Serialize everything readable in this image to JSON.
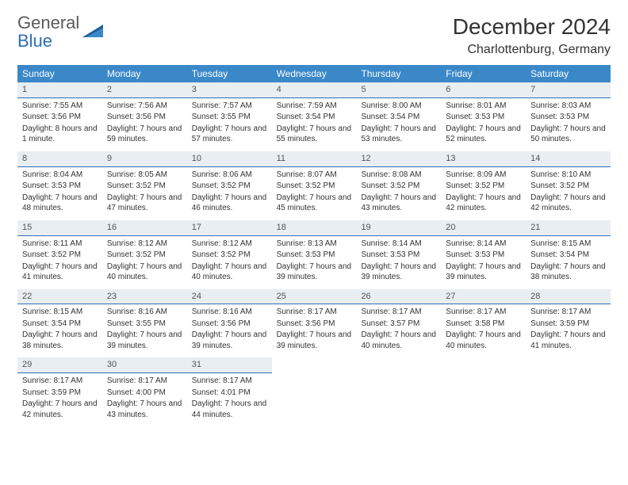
{
  "logo": {
    "part1": "General",
    "part2": "Blue"
  },
  "title": "December 2024",
  "location": "Charlottenburg, Germany",
  "colors": {
    "header_bg": "#3b88c9",
    "header_text": "#ffffff",
    "daynum_bg": "#e9eef2",
    "daynum_border": "#2c6fb5",
    "body_text": "#333333",
    "logo_gray": "#5a5a5a",
    "logo_blue": "#2c6fb5"
  },
  "dayHeaders": [
    "Sunday",
    "Monday",
    "Tuesday",
    "Wednesday",
    "Thursday",
    "Friday",
    "Saturday"
  ],
  "weeks": [
    [
      {
        "n": "1",
        "sunrise": "Sunrise: 7:55 AM",
        "sunset": "Sunset: 3:56 PM",
        "daylight": "Daylight: 8 hours and 1 minute."
      },
      {
        "n": "2",
        "sunrise": "Sunrise: 7:56 AM",
        "sunset": "Sunset: 3:56 PM",
        "daylight": "Daylight: 7 hours and 59 minutes."
      },
      {
        "n": "3",
        "sunrise": "Sunrise: 7:57 AM",
        "sunset": "Sunset: 3:55 PM",
        "daylight": "Daylight: 7 hours and 57 minutes."
      },
      {
        "n": "4",
        "sunrise": "Sunrise: 7:59 AM",
        "sunset": "Sunset: 3:54 PM",
        "daylight": "Daylight: 7 hours and 55 minutes."
      },
      {
        "n": "5",
        "sunrise": "Sunrise: 8:00 AM",
        "sunset": "Sunset: 3:54 PM",
        "daylight": "Daylight: 7 hours and 53 minutes."
      },
      {
        "n": "6",
        "sunrise": "Sunrise: 8:01 AM",
        "sunset": "Sunset: 3:53 PM",
        "daylight": "Daylight: 7 hours and 52 minutes."
      },
      {
        "n": "7",
        "sunrise": "Sunrise: 8:03 AM",
        "sunset": "Sunset: 3:53 PM",
        "daylight": "Daylight: 7 hours and 50 minutes."
      }
    ],
    [
      {
        "n": "8",
        "sunrise": "Sunrise: 8:04 AM",
        "sunset": "Sunset: 3:53 PM",
        "daylight": "Daylight: 7 hours and 48 minutes."
      },
      {
        "n": "9",
        "sunrise": "Sunrise: 8:05 AM",
        "sunset": "Sunset: 3:52 PM",
        "daylight": "Daylight: 7 hours and 47 minutes."
      },
      {
        "n": "10",
        "sunrise": "Sunrise: 8:06 AM",
        "sunset": "Sunset: 3:52 PM",
        "daylight": "Daylight: 7 hours and 46 minutes."
      },
      {
        "n": "11",
        "sunrise": "Sunrise: 8:07 AM",
        "sunset": "Sunset: 3:52 PM",
        "daylight": "Daylight: 7 hours and 45 minutes."
      },
      {
        "n": "12",
        "sunrise": "Sunrise: 8:08 AM",
        "sunset": "Sunset: 3:52 PM",
        "daylight": "Daylight: 7 hours and 43 minutes."
      },
      {
        "n": "13",
        "sunrise": "Sunrise: 8:09 AM",
        "sunset": "Sunset: 3:52 PM",
        "daylight": "Daylight: 7 hours and 42 minutes."
      },
      {
        "n": "14",
        "sunrise": "Sunrise: 8:10 AM",
        "sunset": "Sunset: 3:52 PM",
        "daylight": "Daylight: 7 hours and 42 minutes."
      }
    ],
    [
      {
        "n": "15",
        "sunrise": "Sunrise: 8:11 AM",
        "sunset": "Sunset: 3:52 PM",
        "daylight": "Daylight: 7 hours and 41 minutes."
      },
      {
        "n": "16",
        "sunrise": "Sunrise: 8:12 AM",
        "sunset": "Sunset: 3:52 PM",
        "daylight": "Daylight: 7 hours and 40 minutes."
      },
      {
        "n": "17",
        "sunrise": "Sunrise: 8:12 AM",
        "sunset": "Sunset: 3:52 PM",
        "daylight": "Daylight: 7 hours and 40 minutes."
      },
      {
        "n": "18",
        "sunrise": "Sunrise: 8:13 AM",
        "sunset": "Sunset: 3:53 PM",
        "daylight": "Daylight: 7 hours and 39 minutes."
      },
      {
        "n": "19",
        "sunrise": "Sunrise: 8:14 AM",
        "sunset": "Sunset: 3:53 PM",
        "daylight": "Daylight: 7 hours and 39 minutes."
      },
      {
        "n": "20",
        "sunrise": "Sunrise: 8:14 AM",
        "sunset": "Sunset: 3:53 PM",
        "daylight": "Daylight: 7 hours and 39 minutes."
      },
      {
        "n": "21",
        "sunrise": "Sunrise: 8:15 AM",
        "sunset": "Sunset: 3:54 PM",
        "daylight": "Daylight: 7 hours and 38 minutes."
      }
    ],
    [
      {
        "n": "22",
        "sunrise": "Sunrise: 8:15 AM",
        "sunset": "Sunset: 3:54 PM",
        "daylight": "Daylight: 7 hours and 38 minutes."
      },
      {
        "n": "23",
        "sunrise": "Sunrise: 8:16 AM",
        "sunset": "Sunset: 3:55 PM",
        "daylight": "Daylight: 7 hours and 39 minutes."
      },
      {
        "n": "24",
        "sunrise": "Sunrise: 8:16 AM",
        "sunset": "Sunset: 3:56 PM",
        "daylight": "Daylight: 7 hours and 39 minutes."
      },
      {
        "n": "25",
        "sunrise": "Sunrise: 8:17 AM",
        "sunset": "Sunset: 3:56 PM",
        "daylight": "Daylight: 7 hours and 39 minutes."
      },
      {
        "n": "26",
        "sunrise": "Sunrise: 8:17 AM",
        "sunset": "Sunset: 3:57 PM",
        "daylight": "Daylight: 7 hours and 40 minutes."
      },
      {
        "n": "27",
        "sunrise": "Sunrise: 8:17 AM",
        "sunset": "Sunset: 3:58 PM",
        "daylight": "Daylight: 7 hours and 40 minutes."
      },
      {
        "n": "28",
        "sunrise": "Sunrise: 8:17 AM",
        "sunset": "Sunset: 3:59 PM",
        "daylight": "Daylight: 7 hours and 41 minutes."
      }
    ],
    [
      {
        "n": "29",
        "sunrise": "Sunrise: 8:17 AM",
        "sunset": "Sunset: 3:59 PM",
        "daylight": "Daylight: 7 hours and 42 minutes."
      },
      {
        "n": "30",
        "sunrise": "Sunrise: 8:17 AM",
        "sunset": "Sunset: 4:00 PM",
        "daylight": "Daylight: 7 hours and 43 minutes."
      },
      {
        "n": "31",
        "sunrise": "Sunrise: 8:17 AM",
        "sunset": "Sunset: 4:01 PM",
        "daylight": "Daylight: 7 hours and 44 minutes."
      },
      null,
      null,
      null,
      null
    ]
  ]
}
